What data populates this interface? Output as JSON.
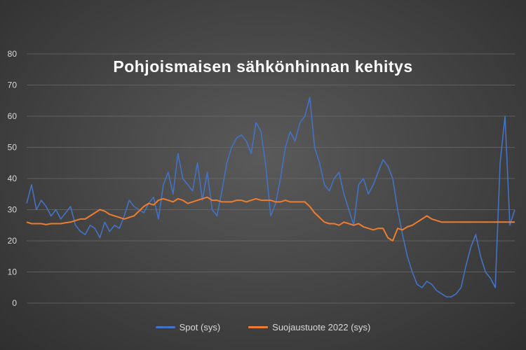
{
  "chart_data": {
    "type": "line",
    "title": "Pohjoismaisen sähkönhinnan kehitys",
    "ylim": [
      0,
      80
    ],
    "yticks": [
      0,
      10,
      20,
      30,
      40,
      50,
      60,
      70,
      80
    ],
    "grid": true,
    "legend_position": "bottom",
    "x": [
      0,
      1,
      2,
      3,
      4,
      5,
      6,
      7,
      8,
      9,
      10,
      11,
      12,
      13,
      14,
      15,
      16,
      17,
      18,
      19,
      20,
      21,
      22,
      23,
      24,
      25,
      26,
      27,
      28,
      29,
      30,
      31,
      32,
      33,
      34,
      35,
      36,
      37,
      38,
      39,
      40,
      41,
      42,
      43,
      44,
      45,
      46,
      47,
      48,
      49,
      50,
      51,
      52,
      53,
      54,
      55,
      56,
      57,
      58,
      59,
      60,
      61,
      62,
      63,
      64,
      65,
      66,
      67,
      68,
      69,
      70,
      71,
      72,
      73,
      74,
      75,
      76,
      77,
      78,
      79,
      80,
      81,
      82,
      83,
      84,
      85,
      86,
      87,
      88,
      89,
      90,
      91,
      92,
      93,
      94,
      95,
      96,
      97,
      98,
      99,
      100
    ],
    "series": [
      {
        "name": "Spot (sys)",
        "color": "#4472c4",
        "values": [
          32,
          38,
          30,
          33,
          31,
          28,
          30,
          27,
          29,
          31,
          25,
          23,
          22,
          25,
          24,
          21,
          26,
          23,
          25,
          24,
          28,
          33,
          31,
          30,
          29,
          32,
          34,
          27,
          38,
          42,
          35,
          48,
          40,
          38,
          36,
          45,
          33,
          42,
          30,
          28,
          36,
          45,
          50,
          53,
          54,
          52,
          48,
          58,
          55,
          44,
          28,
          32,
          40,
          50,
          55,
          52,
          58,
          60,
          66,
          50,
          45,
          38,
          36,
          40,
          42,
          35,
          30,
          25,
          38,
          40,
          35,
          38,
          42,
          46,
          44,
          40,
          30,
          22,
          15,
          10,
          6,
          5,
          7,
          6,
          4,
          3,
          2,
          2,
          3,
          5,
          12,
          18,
          22,
          15,
          10,
          8,
          5,
          45,
          60,
          25,
          30
        ]
      },
      {
        "name": "Suojaustuote 2022 (sys)",
        "color": "#ed7d31",
        "values": [
          26,
          25.5,
          25.5,
          25.5,
          25.2,
          25.5,
          25.5,
          25.5,
          25.8,
          26,
          26.5,
          27,
          27,
          28,
          29,
          30,
          29.5,
          28.5,
          28,
          27.5,
          27,
          27.5,
          28,
          29.5,
          31,
          32,
          31.5,
          33,
          33.5,
          33,
          32.5,
          33.5,
          33,
          32,
          32.5,
          33,
          33.5,
          34,
          33,
          33,
          32.5,
          32.5,
          32.5,
          33,
          33,
          32.5,
          33,
          33.5,
          33,
          33,
          33,
          32.5,
          32.5,
          33,
          32.5,
          32.5,
          32.5,
          32.5,
          31,
          29,
          27.5,
          26,
          25.5,
          25.5,
          25,
          26,
          25.5,
          25,
          25.5,
          24.5,
          24,
          23.5,
          24,
          24,
          21,
          20,
          24,
          23.5,
          24.5,
          25,
          26,
          27,
          28,
          27,
          26.5,
          26,
          26,
          26,
          26,
          26,
          26,
          26,
          26,
          26,
          26,
          26,
          26,
          26,
          26,
          26,
          26
        ]
      }
    ]
  }
}
